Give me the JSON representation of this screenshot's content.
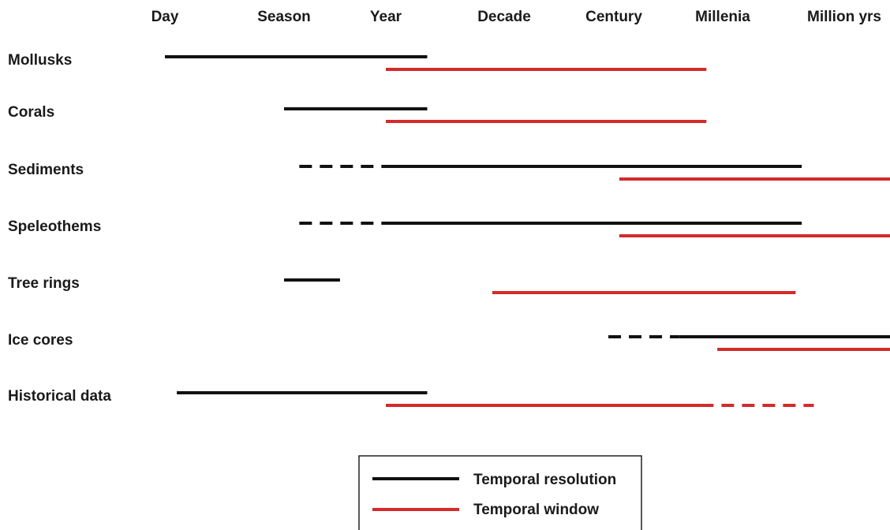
{
  "chart_data": {
    "type": "gantt",
    "title": "",
    "xlabel": "",
    "ylabel": "",
    "x_scale": "ordinal-log",
    "x_ticks": [
      "Day",
      "Season",
      "Year",
      "Decade",
      "Century",
      "Millenia",
      "Million yrs"
    ],
    "legend": {
      "position": "bottom-center",
      "entries": [
        {
          "name": "Temporal resolution",
          "color": "#111111"
        },
        {
          "name": "Temporal window",
          "color": "#d42a2a"
        }
      ]
    },
    "rows": [
      {
        "label": "Mollusks",
        "resolution": [
          {
            "from": 0,
            "to": 2.35,
            "style": "solid"
          }
        ],
        "window": [
          {
            "from": 2.0,
            "to": 4.85,
            "style": "solid"
          }
        ]
      },
      {
        "label": "Corals",
        "resolution": [
          {
            "from": 1.0,
            "to": 2.35,
            "style": "solid"
          }
        ],
        "window": [
          {
            "from": 2.0,
            "to": 4.85,
            "style": "solid"
          }
        ]
      },
      {
        "label": "Sediments",
        "resolution": [
          {
            "from": 1.15,
            "to": 2.0,
            "style": "dashed"
          },
          {
            "from": 2.0,
            "to": 5.65,
            "style": "solid"
          }
        ],
        "window": [
          {
            "from": 4.05,
            "to": 6.75,
            "style": "solid"
          }
        ]
      },
      {
        "label": "Speleothems",
        "resolution": [
          {
            "from": 1.15,
            "to": 2.0,
            "style": "dashed"
          },
          {
            "from": 2.0,
            "to": 5.65,
            "style": "solid"
          }
        ],
        "window": [
          {
            "from": 4.05,
            "to": 6.75,
            "style": "solid"
          }
        ]
      },
      {
        "label": "Tree rings",
        "resolution": [
          {
            "from": 1.0,
            "to": 1.55,
            "style": "solid"
          }
        ],
        "window": [
          {
            "from": 2.9,
            "to": 5.6,
            "style": "solid"
          }
        ]
      },
      {
        "label": "Ice cores",
        "resolution": [
          {
            "from": 3.95,
            "to": 4.6,
            "style": "dashed"
          },
          {
            "from": 4.6,
            "to": 6.75,
            "style": "solid"
          }
        ],
        "window": [
          {
            "from": 4.95,
            "to": 6.75,
            "style": "solid"
          }
        ]
      },
      {
        "label": "Historical data",
        "resolution": [
          {
            "from": 0.1,
            "to": 2.35,
            "style": "solid"
          }
        ],
        "window": [
          {
            "from": 2.0,
            "to": 4.8,
            "style": "solid"
          },
          {
            "from": 4.8,
            "to": 5.75,
            "style": "dashed"
          }
        ]
      }
    ]
  }
}
